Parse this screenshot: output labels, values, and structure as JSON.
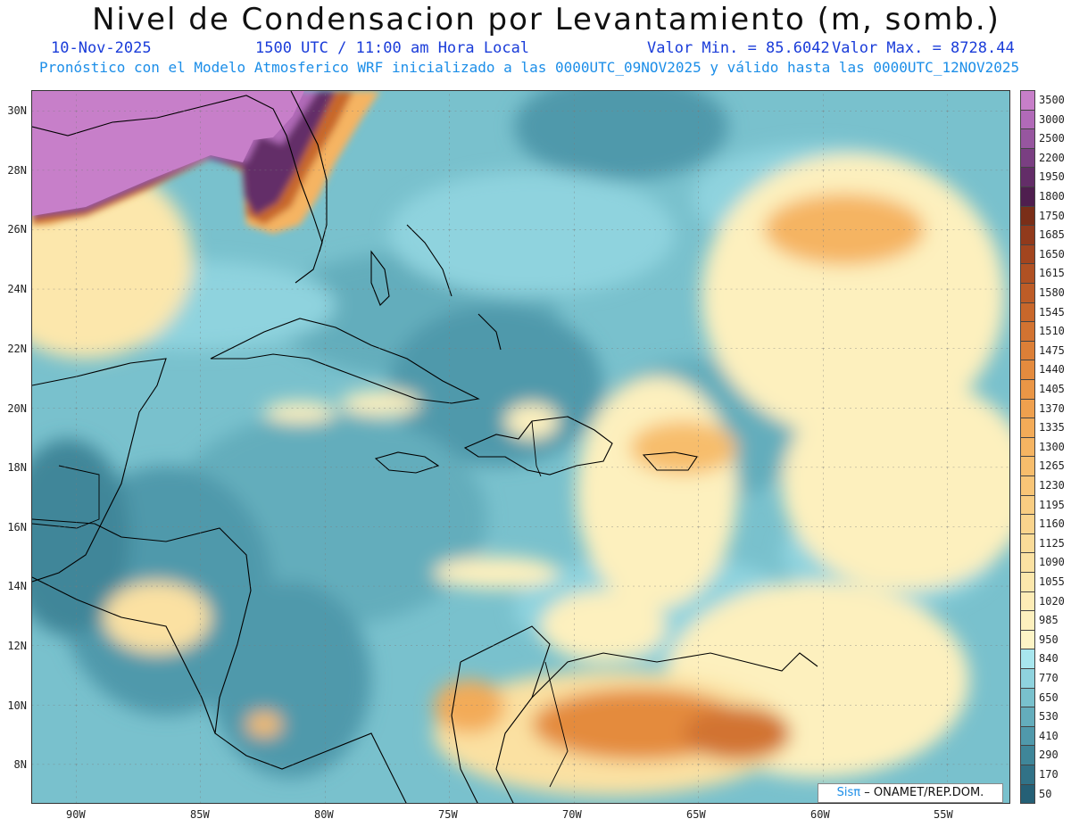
{
  "header": {
    "title": "Nivel de Condensacion por Levantamiento (m, somb.)",
    "date": "10-Nov-2025",
    "time": "1500 UTC / 11:00 am Hora Local",
    "min": "Valor Min. = 85.6042",
    "max": "Valor Max. = 8728.44",
    "model_line": "Pronóstico con el Modelo Atmosferico WRF inicializado a las 0000UTC_09NOV2025 y válido hasta las  0000UTC_12NOV2025"
  },
  "map": {
    "lat_labels": [
      "30N",
      "28N",
      "26N",
      "24N",
      "22N",
      "20N",
      "18N",
      "16N",
      "14N",
      "12N",
      "10N",
      "8N"
    ],
    "lon_labels": [
      "90W",
      "85W",
      "80W",
      "75W",
      "70W",
      "65W",
      "60W",
      "55W"
    ],
    "credit_logo": "Sisπ",
    "credit_text": "– ONAMET/REP.DOM."
  },
  "colorbar": {
    "labels": [
      "3500",
      "3000",
      "2500",
      "2200",
      "1950",
      "1800",
      "1750",
      "1685",
      "1650",
      "1615",
      "1580",
      "1545",
      "1510",
      "1475",
      "1440",
      "1405",
      "1370",
      "1335",
      "1300",
      "1265",
      "1230",
      "1195",
      "1160",
      "1125",
      "1090",
      "1055",
      "1020",
      "985",
      "950",
      "840",
      "770",
      "650",
      "530",
      "410",
      "290",
      "170",
      "50"
    ],
    "colors": [
      "#c77fc9",
      "#b16ab8",
      "#97569f",
      "#7a3f82",
      "#632d68",
      "#4f1e4f",
      "#7a2e18",
      "#913a1c",
      "#a2451f",
      "#b05123",
      "#bd5c27",
      "#c8672b",
      "#d27331",
      "#dc7f37",
      "#e48b3e",
      "#ea9646",
      "#efa04e",
      "#f3ab58",
      "#f5b462",
      "#f7bd6c",
      "#f8c577",
      "#f9cd82",
      "#fad48d",
      "#fadb98",
      "#fbe1a2",
      "#fce7ac",
      "#fdecb6",
      "#fdf0be",
      "#fdf4c6",
      "#a8e6ee",
      "#8fd3de",
      "#79c1cd",
      "#64adbc",
      "#5099ab",
      "#3f8699",
      "#317287",
      "#256076"
    ]
  }
}
